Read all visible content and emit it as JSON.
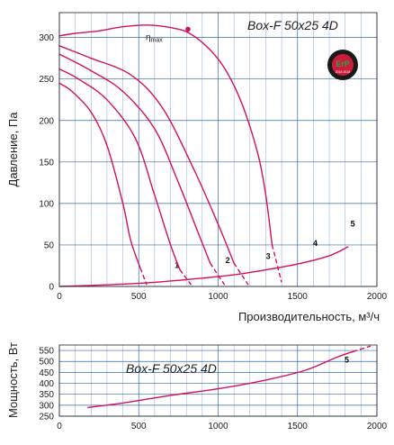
{
  "colors": {
    "curve": "#d40f5e",
    "grid": "#1e5aa0",
    "axis": "#222222",
    "background": "#ffffff",
    "badge_outer": "#1a1a1a",
    "badge_inner": "#cc1b3b",
    "badge_text": "#2aa14a"
  },
  "badge": {
    "icon": "erp-badge-icon",
    "text": "ErP",
    "subtext": "2015 2018"
  },
  "chart_data": [
    {
      "type": "line",
      "title": "Box-F 50x25 4D",
      "xlabel": "Производительность, м³/ч",
      "ylabel": "Давление, Па",
      "xlim": [
        0,
        2000
      ],
      "ylim": [
        0,
        330
      ],
      "xticks": [
        0,
        500,
        1000,
        1500,
        2000
      ],
      "yticks": [
        0,
        50,
        100,
        150,
        200,
        250,
        300
      ],
      "xtick_labels": [
        "0",
        "500",
        "1000",
        "1500",
        "2000"
      ],
      "ytick_labels": [
        "0",
        "50",
        "100",
        "150",
        "200",
        "250",
        "300"
      ],
      "grid": true,
      "eta_label": "η",
      "eta_subscript": "max",
      "eta_point": {
        "x": 810,
        "y": 310
      },
      "series": [
        {
          "label": "1",
          "label_at": [
            740,
            22
          ],
          "solid": [
            [
              0,
              245
            ],
            [
              80,
              235
            ],
            [
              200,
              210
            ],
            [
              300,
              170
            ],
            [
              400,
              100
            ],
            [
              450,
              55
            ],
            [
              510,
              22
            ]
          ],
          "dashed": [
            [
              510,
              22
            ],
            [
              550,
              2
            ]
          ]
        },
        {
          "label": "2",
          "label_at": [
            1060,
            28
          ],
          "solid": [
            [
              0,
              262
            ],
            [
              120,
              250
            ],
            [
              300,
              225
            ],
            [
              480,
              178
            ],
            [
              600,
              110
            ],
            [
              700,
              50
            ],
            [
              760,
              20
            ]
          ],
          "dashed": [
            [
              760,
              20
            ],
            [
              830,
              2
            ]
          ]
        },
        {
          "label": "3",
          "label_at": [
            1315,
            33
          ],
          "solid": [
            [
              0,
              280
            ],
            [
              200,
              260
            ],
            [
              400,
              235
            ],
            [
              600,
              190
            ],
            [
              750,
              125
            ],
            [
              880,
              62
            ],
            [
              950,
              28
            ]
          ],
          "dashed": [
            [
              950,
              28
            ],
            [
              1040,
              2
            ]
          ]
        },
        {
          "label": "4",
          "label_at": [
            1612,
            49
          ],
          "solid": [
            [
              0,
              290
            ],
            [
              200,
              275
            ],
            [
              450,
              255
            ],
            [
              650,
              215
            ],
            [
              850,
              140
            ],
            [
              1000,
              75
            ],
            [
              1100,
              28
            ]
          ],
          "dashed": [
            [
              1100,
              28
            ],
            [
              1190,
              2
            ]
          ]
        },
        {
          "label": "5",
          "label_at": [
            1848,
            72
          ],
          "solid": [
            [
              0,
              302
            ],
            [
              100,
              305
            ],
            [
              250,
              308
            ],
            [
              400,
              313
            ],
            [
              550,
              315
            ],
            [
              700,
              312
            ],
            [
              820,
              305
            ],
            [
              950,
              285
            ],
            [
              1050,
              260
            ],
            [
              1150,
              220
            ],
            [
              1250,
              160
            ],
            [
              1300,
              110
            ],
            [
              1340,
              50
            ]
          ],
          "dashed": [
            [
              1340,
              50
            ],
            [
              1400,
              5
            ]
          ]
        }
      ],
      "system_curve": {
        "points": [
          [
            0,
            0
          ],
          [
            300,
            2
          ],
          [
            600,
            5
          ],
          [
            900,
            10
          ],
          [
            1100,
            14
          ],
          [
            1300,
            20
          ],
          [
            1500,
            27
          ],
          [
            1700,
            37
          ],
          [
            1820,
            48
          ]
        ]
      }
    },
    {
      "type": "line",
      "title": "Box-F 50x25 4D",
      "xlabel": "",
      "ylabel": "Мощность, Вт",
      "xlim": [
        0,
        2000
      ],
      "ylim": [
        250,
        575
      ],
      "xticks": [
        0,
        500,
        1000,
        1500,
        2000
      ],
      "yticks": [
        250,
        300,
        350,
        400,
        450,
        500,
        550
      ],
      "xtick_labels": [
        "0",
        "500",
        "1000",
        "1500",
        "2000"
      ],
      "ytick_labels": [
        "250",
        "300",
        "350",
        "400",
        "450",
        "500",
        "550"
      ],
      "grid": true,
      "series": [
        {
          "label": "5",
          "label_at": [
            1810,
            495
          ],
          "solid": [
            [
              180,
              290
            ],
            [
              400,
              310
            ],
            [
              700,
              345
            ],
            [
              1000,
              375
            ],
            [
              1300,
              415
            ],
            [
              1550,
              460
            ],
            [
              1750,
              520
            ],
            [
              1850,
              545
            ]
          ],
          "dashed": [
            [
              1850,
              545
            ],
            [
              1960,
              570
            ]
          ]
        }
      ]
    }
  ]
}
